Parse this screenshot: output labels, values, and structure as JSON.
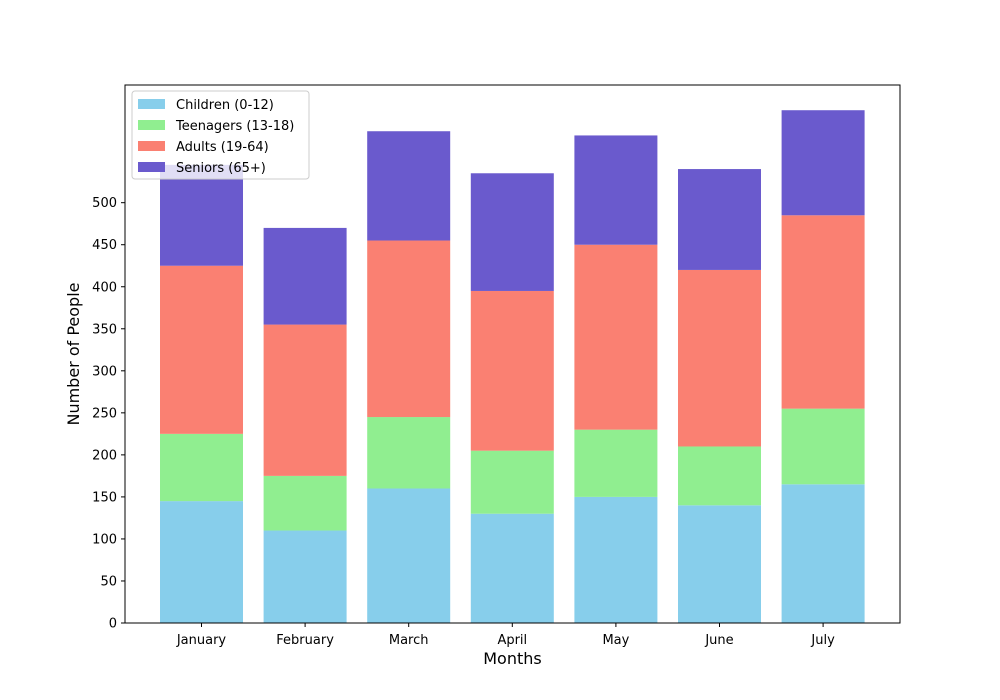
{
  "chart_data": {
    "type": "bar",
    "stacked": true,
    "title": "",
    "xlabel": "Months",
    "ylabel": "Number of People",
    "categories": [
      "January",
      "February",
      "March",
      "April",
      "May",
      "June",
      "July"
    ],
    "series": [
      {
        "name": "Children (0-12)",
        "color": "#87ceeb",
        "values": [
          145,
          110,
          160,
          130,
          150,
          140,
          165
        ]
      },
      {
        "name": "Teenagers (13-18)",
        "color": "#90ee90",
        "values": [
          80,
          65,
          85,
          75,
          80,
          70,
          90
        ]
      },
      {
        "name": "Adults (19-64)",
        "color": "#fa8072",
        "values": [
          200,
          180,
          210,
          190,
          220,
          210,
          230
        ]
      },
      {
        "name": "Seniors (65+)",
        "color": "#6a5acd",
        "values": [
          120,
          115,
          130,
          140,
          130,
          120,
          125
        ]
      }
    ],
    "ylim": [
      0,
      640
    ],
    "yticks": [
      0,
      50,
      100,
      150,
      200,
      250,
      300,
      350,
      400,
      450,
      500
    ],
    "grid": false,
    "legend_position": "upper-left"
  }
}
